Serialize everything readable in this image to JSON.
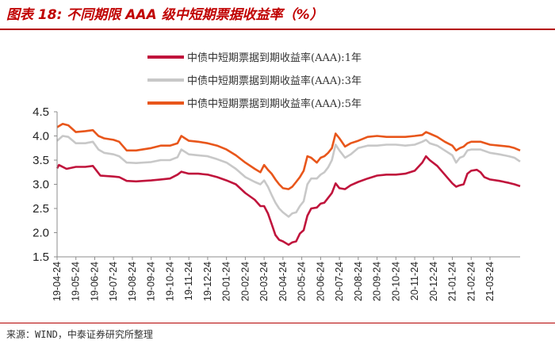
{
  "header": {
    "title": "图表 18:  不同期限 AAA 级中短期票据收益率（%）"
  },
  "footer": {
    "source": "来源：WIND，中泰证券研究所整理"
  },
  "chart_data": {
    "type": "line",
    "title": "不同期限 AAA 级中短期票据收益率（%）",
    "xlabel": "",
    "ylabel": "",
    "ylim": [
      1.5,
      4.5
    ],
    "yticks": [
      "1.5",
      "2.0",
      "2.5",
      "3.0",
      "3.5",
      "4.0",
      "4.5"
    ],
    "xticks": [
      "19-04-24",
      "19-05-24",
      "19-06-24",
      "19-07-24",
      "19-08-24",
      "19-09-24",
      "19-10-24",
      "19-11-24",
      "19-12-24",
      "20-01-24",
      "20-02-24",
      "20-03-24",
      "20-04-24",
      "20-05-24",
      "20-06-24",
      "20-07-24",
      "20-08-24",
      "20-09-24",
      "20-10-24",
      "20-11-24",
      "20-12-24",
      "21-01-24",
      "21-02-24",
      "21-03-24"
    ],
    "x_end_month_index": 24.6,
    "grid": false,
    "legend_position": "top-center",
    "series": [
      {
        "name": "中债中短期票据到期收益率(AAA):1年",
        "color": "#c0143c",
        "points": [
          [
            0,
            3.33
          ],
          [
            0.1,
            3.4
          ],
          [
            0.2,
            3.38
          ],
          [
            0.5,
            3.32
          ],
          [
            1,
            3.36
          ],
          [
            1.5,
            3.36
          ],
          [
            1.9,
            3.38
          ],
          [
            2.1,
            3.28
          ],
          [
            2.3,
            3.18
          ],
          [
            3,
            3.16
          ],
          [
            3.3,
            3.15
          ],
          [
            3.7,
            3.07
          ],
          [
            4.2,
            3.06
          ],
          [
            5,
            3.08
          ],
          [
            5.5,
            3.1
          ],
          [
            6,
            3.12
          ],
          [
            6.4,
            3.2
          ],
          [
            6.6,
            3.26
          ],
          [
            7,
            3.22
          ],
          [
            7.5,
            3.22
          ],
          [
            8,
            3.2
          ],
          [
            8.5,
            3.15
          ],
          [
            9,
            3.08
          ],
          [
            9.5,
            3.0
          ],
          [
            10,
            2.82
          ],
          [
            10.5,
            2.68
          ],
          [
            10.8,
            2.55
          ],
          [
            11,
            2.55
          ],
          [
            11.2,
            2.4
          ],
          [
            11.4,
            2.18
          ],
          [
            11.6,
            1.95
          ],
          [
            11.8,
            1.85
          ],
          [
            12,
            1.82
          ],
          [
            12.3,
            1.75
          ],
          [
            12.5,
            1.8
          ],
          [
            12.7,
            1.82
          ],
          [
            12.9,
            1.98
          ],
          [
            13.1,
            2.05
          ],
          [
            13.3,
            2.35
          ],
          [
            13.5,
            2.5
          ],
          [
            13.8,
            2.52
          ],
          [
            14,
            2.6
          ],
          [
            14.2,
            2.62
          ],
          [
            14.4,
            2.72
          ],
          [
            14.6,
            2.82
          ],
          [
            14.8,
            3.02
          ],
          [
            15,
            2.92
          ],
          [
            15.3,
            2.9
          ],
          [
            15.6,
            2.98
          ],
          [
            16,
            3.05
          ],
          [
            16.5,
            3.12
          ],
          [
            17,
            3.18
          ],
          [
            17.5,
            3.2
          ],
          [
            18,
            3.2
          ],
          [
            18.5,
            3.22
          ],
          [
            19,
            3.28
          ],
          [
            19.4,
            3.45
          ],
          [
            19.6,
            3.58
          ],
          [
            19.8,
            3.5
          ],
          [
            20.2,
            3.38
          ],
          [
            20.6,
            3.2
          ],
          [
            21,
            3.02
          ],
          [
            21.2,
            2.95
          ],
          [
            21.4,
            2.98
          ],
          [
            21.6,
            3.0
          ],
          [
            21.8,
            3.22
          ],
          [
            22,
            3.28
          ],
          [
            22.3,
            3.3
          ],
          [
            22.5,
            3.25
          ],
          [
            22.7,
            3.15
          ],
          [
            23,
            3.1
          ],
          [
            23.5,
            3.07
          ],
          [
            24,
            3.03
          ],
          [
            24.3,
            3.0
          ],
          [
            24.6,
            2.96
          ]
        ]
      },
      {
        "name": "中债中短期票据到期收益率(AAA):3年",
        "color": "#c8c8c8",
        "points": [
          [
            0,
            3.9
          ],
          [
            0.3,
            4.0
          ],
          [
            0.6,
            3.98
          ],
          [
            1,
            3.85
          ],
          [
            1.5,
            3.85
          ],
          [
            1.9,
            3.88
          ],
          [
            2.2,
            3.72
          ],
          [
            2.5,
            3.65
          ],
          [
            3,
            3.62
          ],
          [
            3.3,
            3.58
          ],
          [
            3.7,
            3.45
          ],
          [
            4.2,
            3.44
          ],
          [
            5,
            3.46
          ],
          [
            5.5,
            3.5
          ],
          [
            6,
            3.5
          ],
          [
            6.4,
            3.56
          ],
          [
            6.6,
            3.72
          ],
          [
            7,
            3.62
          ],
          [
            7.5,
            3.6
          ],
          [
            8,
            3.58
          ],
          [
            8.5,
            3.52
          ],
          [
            9,
            3.45
          ],
          [
            9.5,
            3.32
          ],
          [
            10,
            3.15
          ],
          [
            10.5,
            3.05
          ],
          [
            10.8,
            3.0
          ],
          [
            11,
            3.08
          ],
          [
            11.2,
            2.95
          ],
          [
            11.4,
            2.78
          ],
          [
            11.6,
            2.62
          ],
          [
            11.8,
            2.5
          ],
          [
            12,
            2.42
          ],
          [
            12.3,
            2.33
          ],
          [
            12.5,
            2.4
          ],
          [
            12.7,
            2.42
          ],
          [
            12.9,
            2.55
          ],
          [
            13.1,
            2.65
          ],
          [
            13.3,
            3.0
          ],
          [
            13.5,
            3.12
          ],
          [
            13.8,
            3.12
          ],
          [
            14,
            3.2
          ],
          [
            14.2,
            3.25
          ],
          [
            14.4,
            3.35
          ],
          [
            14.6,
            3.5
          ],
          [
            14.8,
            3.82
          ],
          [
            15,
            3.7
          ],
          [
            15.3,
            3.55
          ],
          [
            15.6,
            3.62
          ],
          [
            16,
            3.75
          ],
          [
            16.5,
            3.8
          ],
          [
            17,
            3.8
          ],
          [
            17.5,
            3.82
          ],
          [
            18,
            3.82
          ],
          [
            18.5,
            3.8
          ],
          [
            19,
            3.82
          ],
          [
            19.4,
            3.88
          ],
          [
            19.6,
            3.92
          ],
          [
            19.8,
            3.85
          ],
          [
            20.2,
            3.8
          ],
          [
            20.6,
            3.7
          ],
          [
            21,
            3.6
          ],
          [
            21.2,
            3.45
          ],
          [
            21.4,
            3.55
          ],
          [
            21.6,
            3.58
          ],
          [
            21.8,
            3.7
          ],
          [
            22,
            3.72
          ],
          [
            22.5,
            3.72
          ],
          [
            23,
            3.65
          ],
          [
            23.5,
            3.62
          ],
          [
            24,
            3.58
          ],
          [
            24.3,
            3.55
          ],
          [
            24.6,
            3.47
          ]
        ]
      },
      {
        "name": "中债中短期票据到期收益率(AAA):5年",
        "color": "#e8561b",
        "points": [
          [
            0,
            4.18
          ],
          [
            0.3,
            4.25
          ],
          [
            0.6,
            4.22
          ],
          [
            1,
            4.08
          ],
          [
            1.5,
            4.1
          ],
          [
            1.9,
            4.12
          ],
          [
            2.2,
            4.0
          ],
          [
            2.5,
            3.95
          ],
          [
            3,
            3.92
          ],
          [
            3.3,
            3.88
          ],
          [
            3.7,
            3.7
          ],
          [
            4.2,
            3.7
          ],
          [
            5,
            3.75
          ],
          [
            5.5,
            3.8
          ],
          [
            6,
            3.8
          ],
          [
            6.4,
            3.85
          ],
          [
            6.6,
            4.0
          ],
          [
            7,
            3.9
          ],
          [
            7.5,
            3.88
          ],
          [
            8,
            3.85
          ],
          [
            8.5,
            3.8
          ],
          [
            9,
            3.72
          ],
          [
            9.5,
            3.6
          ],
          [
            10,
            3.45
          ],
          [
            10.5,
            3.32
          ],
          [
            10.8,
            3.25
          ],
          [
            11,
            3.4
          ],
          [
            11.2,
            3.3
          ],
          [
            11.4,
            3.22
          ],
          [
            11.6,
            3.1
          ],
          [
            11.8,
            3.0
          ],
          [
            12,
            2.92
          ],
          [
            12.3,
            2.9
          ],
          [
            12.5,
            2.95
          ],
          [
            12.7,
            3.05
          ],
          [
            12.9,
            3.15
          ],
          [
            13.1,
            3.28
          ],
          [
            13.3,
            3.58
          ],
          [
            13.5,
            3.55
          ],
          [
            13.8,
            3.45
          ],
          [
            14,
            3.55
          ],
          [
            14.2,
            3.58
          ],
          [
            14.4,
            3.65
          ],
          [
            14.6,
            3.75
          ],
          [
            14.8,
            4.05
          ],
          [
            15,
            3.95
          ],
          [
            15.3,
            3.78
          ],
          [
            15.6,
            3.85
          ],
          [
            16,
            3.9
          ],
          [
            16.5,
            3.98
          ],
          [
            17,
            4.0
          ],
          [
            17.5,
            3.98
          ],
          [
            18,
            3.98
          ],
          [
            18.5,
            3.98
          ],
          [
            19,
            4.0
          ],
          [
            19.4,
            4.02
          ],
          [
            19.6,
            4.08
          ],
          [
            19.8,
            4.05
          ],
          [
            20.2,
            3.98
          ],
          [
            20.6,
            3.88
          ],
          [
            21,
            3.8
          ],
          [
            21.2,
            3.7
          ],
          [
            21.4,
            3.75
          ],
          [
            21.6,
            3.78
          ],
          [
            21.8,
            3.85
          ],
          [
            22,
            3.88
          ],
          [
            22.5,
            3.88
          ],
          [
            23,
            3.82
          ],
          [
            23.5,
            3.8
          ],
          [
            24,
            3.78
          ],
          [
            24.3,
            3.75
          ],
          [
            24.6,
            3.7
          ]
        ]
      }
    ]
  }
}
